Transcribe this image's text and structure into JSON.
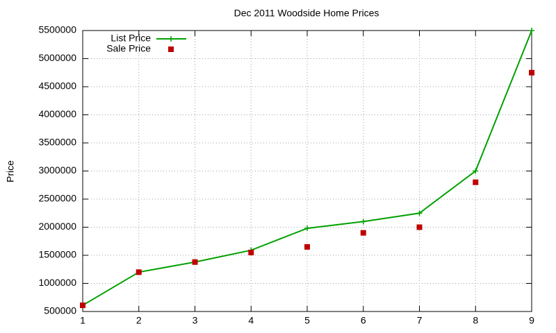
{
  "chart_data": {
    "type": "line",
    "title": "Dec 2011 Woodside Home Prices",
    "y_label": "Price",
    "x": [
      1,
      2,
      3,
      4,
      5,
      6,
      7,
      8,
      9
    ],
    "xlim": [
      1,
      9
    ],
    "xticks": [
      1,
      2,
      3,
      4,
      5,
      6,
      7,
      8,
      9
    ],
    "ylim": [
      500000,
      5500000
    ],
    "yticks": [
      500000,
      1000000,
      1500000,
      2000000,
      2500000,
      3000000,
      3500000,
      4000000,
      4500000,
      5000000,
      5500000
    ],
    "grid": true,
    "legend": "top-left",
    "series": [
      {
        "name": "List Price",
        "color": "#00a000",
        "style": "linespoints",
        "marker": "plus",
        "values": [
          610000,
          1200000,
          1380000,
          1590000,
          1980000,
          2100000,
          2250000,
          3000000,
          5500000
        ]
      },
      {
        "name": "Sale Price",
        "color": "#c00000",
        "style": "points",
        "marker": "square",
        "values": [
          610000,
          1200000,
          1380000,
          1550000,
          1650000,
          1900000,
          2000000,
          2800000,
          4750000
        ]
      }
    ]
  }
}
